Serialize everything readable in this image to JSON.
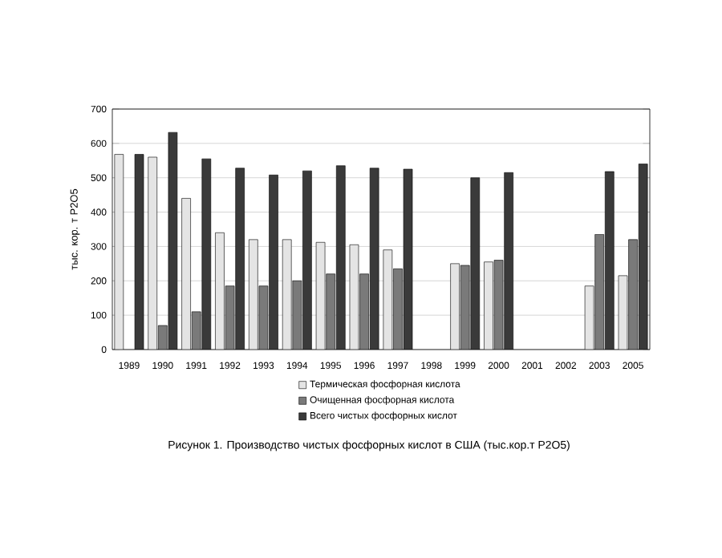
{
  "chart_data": {
    "type": "bar",
    "title": "Рисунок 1. Производство чистых фосфорных кислот в США (тыс.кор.т Р2О5)",
    "ylabel": "тыс. кор. т  Р2О5",
    "categories": [
      "1989",
      "1990",
      "1991",
      "1992",
      "1993",
      "1994",
      "1995",
      "1996",
      "1997",
      "1998",
      "1999",
      "2000",
      "2001",
      "2002",
      "2003",
      "2005"
    ],
    "series": [
      {
        "name": "Термическая фосфорная кислота",
        "color": "#e4e4e4",
        "values": [
          568,
          560,
          440,
          340,
          320,
          320,
          312,
          305,
          290,
          null,
          250,
          255,
          null,
          null,
          185,
          215
        ]
      },
      {
        "name": "Очищенная фосфорная кислота",
        "color": "#7a7a7a",
        "values": [
          null,
          70,
          110,
          185,
          185,
          200,
          220,
          220,
          235,
          null,
          245,
          260,
          null,
          null,
          335,
          320
        ]
      },
      {
        "name": "Всего чистых фосфорных кислот",
        "color": "#3a3a3a",
        "values": [
          568,
          632,
          555,
          528,
          508,
          520,
          535,
          528,
          525,
          null,
          500,
          515,
          null,
          null,
          518,
          540
        ]
      }
    ],
    "ylim": [
      0,
      700
    ],
    "yticks": [
      0,
      100,
      200,
      300,
      400,
      500,
      600,
      700
    ],
    "grid": "y",
    "legend": "bottom"
  }
}
